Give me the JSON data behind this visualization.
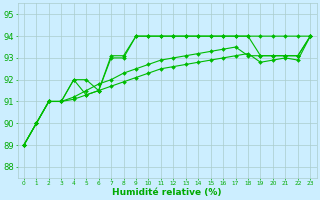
{
  "background_color": "#cceeff",
  "grid_color": "#aacccc",
  "line_color": "#00bb00",
  "marker_color": "#00bb00",
  "xlabel": "Humidité relative (%)",
  "xlabel_color": "#00aa00",
  "tick_color": "#00aa00",
  "ylabel_ticks": [
    88,
    89,
    90,
    91,
    92,
    93,
    94,
    95
  ],
  "xlim": [
    -0.5,
    23.5
  ],
  "ylim": [
    87.5,
    95.5
  ],
  "s1": [
    89,
    90,
    91,
    91,
    92,
    91.3,
    91.5,
    93.1,
    93.1,
    94,
    94,
    94,
    94,
    94,
    94,
    94,
    94,
    94,
    94,
    94,
    94,
    94,
    94,
    94
  ],
  "s2": [
    89,
    90,
    91,
    91,
    92,
    92,
    91.5,
    93,
    93,
    94,
    94,
    94,
    94,
    94,
    94,
    94,
    94,
    94,
    94,
    93.1,
    93.1,
    93.1,
    93.1,
    94
  ],
  "s3": [
    89,
    90,
    91,
    91,
    91.2,
    91.5,
    91.8,
    92.0,
    92.3,
    92.5,
    92.7,
    92.9,
    93.0,
    93.1,
    93.2,
    93.3,
    93.4,
    93.5,
    93.1,
    93.1,
    93.1,
    93.1,
    93.1,
    94
  ],
  "s4": [
    89,
    90,
    91,
    91,
    91.1,
    91.3,
    91.5,
    91.7,
    91.9,
    92.1,
    92.3,
    92.5,
    92.6,
    92.7,
    92.8,
    92.9,
    93.0,
    93.1,
    93.2,
    92.8,
    92.9,
    93.0,
    92.9,
    94
  ],
  "xtick_labels": [
    "0",
    "1",
    "2",
    "3",
    "4",
    "5",
    "6",
    "7",
    "8",
    "9",
    "10",
    "11",
    "12",
    "13",
    "14",
    "15",
    "16",
    "17",
    "18",
    "19",
    "20",
    "21",
    "22",
    "23"
  ],
  "xlabel_fontsize": 6.5,
  "ytick_fontsize": 6,
  "xtick_fontsize": 4.2,
  "linewidth": 0.8,
  "markersize": 2.0
}
